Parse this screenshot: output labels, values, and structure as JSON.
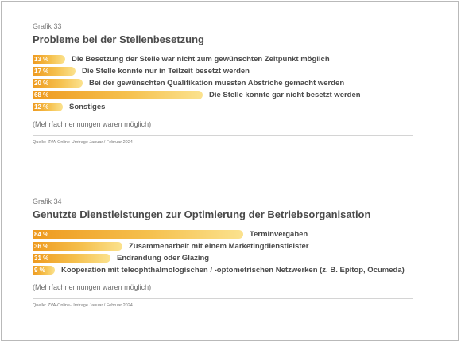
{
  "chart_data": [
    {
      "type": "bar",
      "orientation": "horizontal",
      "subtitle": "Grafik 33",
      "title": "Probleme bei der Stellenbesetzung",
      "unit": "%",
      "value_labels": [
        "13 %",
        "17 %",
        "20 %",
        "68 %",
        "12 %"
      ],
      "categories": [
        "Die Besetzung der Stelle war nicht zum gewünschten Zeitpunkt möglich",
        "Die Stelle konnte nur in Teilzeit besetzt werden",
        "Bei der gewünschten Qualifikation mussten Abstriche gemacht werden",
        "Die Stelle konnte gar nicht besetzt werden",
        "Sonstiges"
      ],
      "values": [
        13,
        17,
        20,
        68,
        12
      ],
      "note": "(Mehrfachnennungen waren möglich)",
      "source": "Quelle: ZVA-Online-Umfrage Januar / Februar 2024",
      "colors": {
        "bar_start": "#ee9a1f",
        "bar_end": "#fbe28e"
      },
      "grid": false,
      "legend": "none"
    },
    {
      "type": "bar",
      "orientation": "horizontal",
      "subtitle": "Grafik 34",
      "title": "Genutzte Dienstleistungen zur Optimierung der Betriebsorganisation",
      "unit": "%",
      "value_labels": [
        "84 %",
        "36 %",
        "31 %",
        "9 %"
      ],
      "categories": [
        "Terminvergaben",
        "Zusammenarbeit mit einem Marketingdienstleister",
        "Endrandung oder Glazing",
        "Kooperation mit teleophthalmologischen / -optometrischen Netzwerken (z. B. Epitop, Ocumeda)"
      ],
      "values": [
        84,
        36,
        31,
        9
      ],
      "note": "(Mehrfachnennungen waren möglich)",
      "source": "Quelle: ZVA-Online-Umfrage Januar / Februar 2024",
      "colors": {
        "bar_start": "#ee9a1f",
        "bar_end": "#fbe28e"
      },
      "grid": false,
      "legend": "none"
    }
  ]
}
